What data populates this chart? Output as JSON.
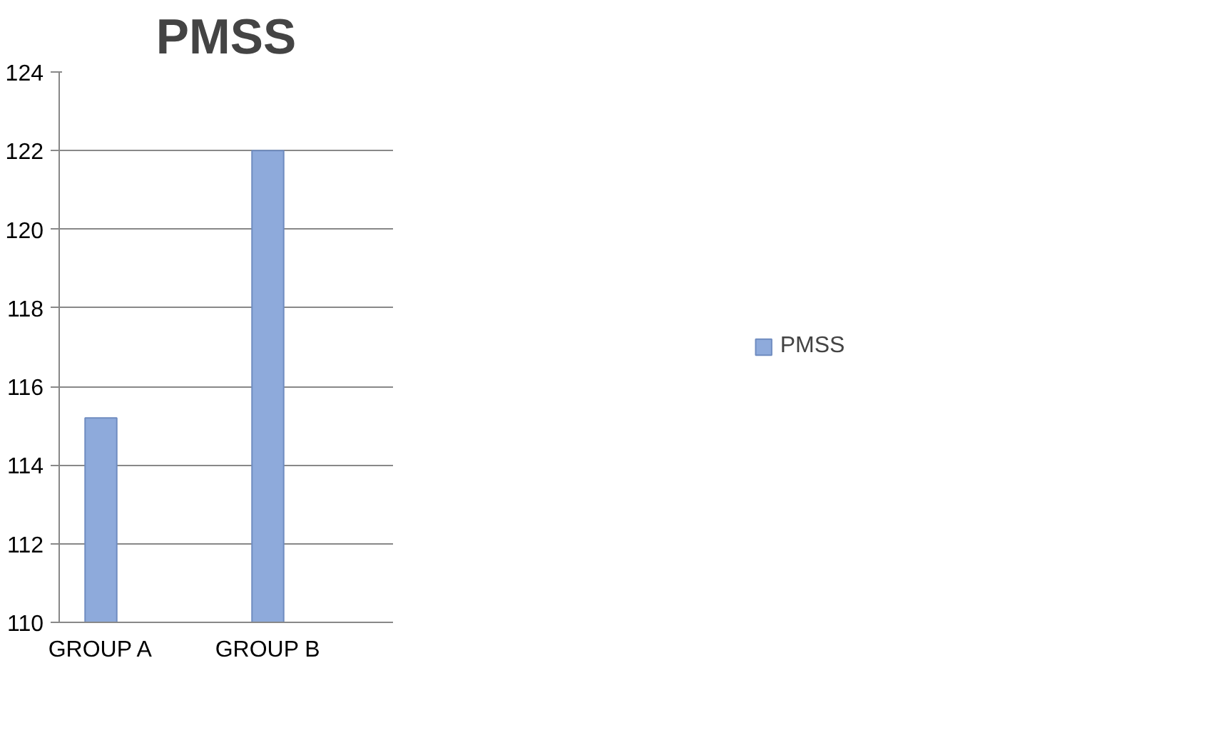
{
  "chart_data": {
    "type": "bar",
    "title": "PMSS",
    "categories": [
      "GROUP A",
      null,
      "GROUP B",
      null
    ],
    "series": [
      {
        "name": "PMSS",
        "color": "#8eaadb",
        "values": [
          115.2,
          null,
          122,
          null
        ]
      }
    ],
    "ylim": [
      110,
      124
    ],
    "yticks": [
      110,
      112,
      114,
      116,
      118,
      120,
      122,
      124
    ],
    "grid": "y",
    "legend": "right"
  }
}
